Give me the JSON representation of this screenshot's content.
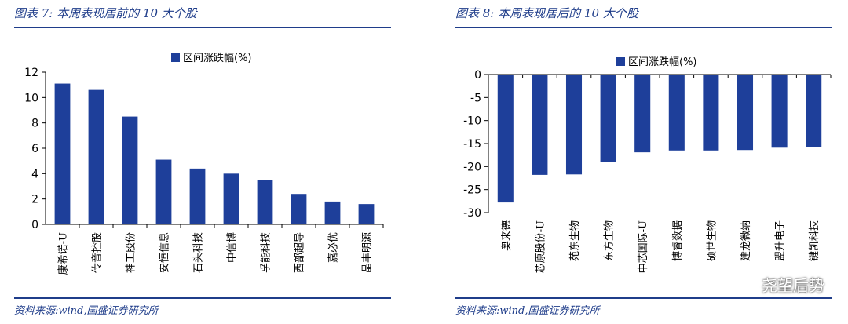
{
  "left": {
    "title": "图表 7:  本周表现居前的 10 大个股",
    "source": "资料来源:wind,国盛证券研究所",
    "chart_data": {
      "type": "bar",
      "legend": "区间涨跌幅(%)",
      "legend_position": "top-center",
      "categories": [
        "康希诺-U",
        "传音控股",
        "神工股份",
        "安恒信息",
        "石头科技",
        "中信博",
        "孚能科技",
        "西部超导",
        "嘉必优",
        "晶丰明源"
      ],
      "values": [
        11.1,
        10.6,
        8.5,
        5.1,
        4.4,
        4.0,
        3.5,
        2.4,
        1.8,
        1.6
      ],
      "ylim": [
        0,
        12
      ],
      "yticks": [
        0,
        2,
        4,
        6,
        8,
        10,
        12
      ],
      "color": "#1e3f9a",
      "grid": false
    }
  },
  "right": {
    "title": "图表 8:  本周表现居后的 10 大个股",
    "source": "资料来源:wind,国盛证券研究所",
    "chart_data": {
      "type": "bar",
      "legend": "区间涨跌幅(%)",
      "legend_position": "top-center",
      "categories": [
        "奥来德",
        "芯原股份-U",
        "苑东生物",
        "东方生物",
        "中芯国际-U",
        "博睿数据",
        "硕世生物",
        "建龙微纳",
        "盟升电子",
        "键凯科技"
      ],
      "values": [
        -27.8,
        -21.8,
        -21.7,
        -19.0,
        -16.9,
        -16.5,
        -16.5,
        -16.4,
        -15.9,
        -15.8
      ],
      "ylim": [
        -30,
        0
      ],
      "yticks": [
        0,
        -5,
        -10,
        -15,
        -20,
        -25,
        -30
      ],
      "color": "#1e3f9a",
      "grid": false
    }
  },
  "watermark": "尧望后势"
}
